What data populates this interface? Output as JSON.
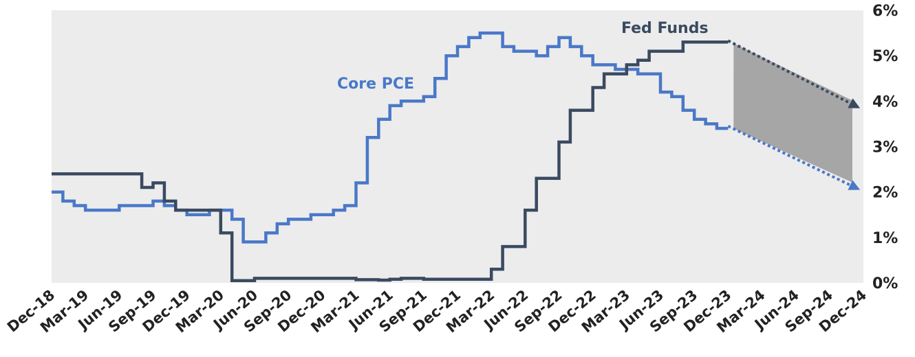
{
  "chart_data": {
    "type": "line",
    "title": "",
    "xlabel": "",
    "ylabel": "",
    "x_ticks": [
      "Dec-18",
      "Mar-19",
      "Jun-19",
      "Sep-19",
      "Dec-19",
      "Mar-20",
      "Jun-20",
      "Sep-20",
      "Dec-20",
      "Mar-21",
      "Jun-21",
      "Sep-21",
      "Dec-21",
      "Mar-22",
      "Jun-22",
      "Sep-22",
      "Dec-22",
      "Mar-23",
      "Jun-23",
      "Sep-23",
      "Dec-23",
      "Mar-24",
      "Jun-24",
      "Sep-24",
      "Dec-24"
    ],
    "y_ticks": [
      "0%",
      "1%",
      "2%",
      "3%",
      "4%",
      "5%",
      "6%"
    ],
    "ylim": [
      0,
      6
    ],
    "xlim": [
      "Dec-18",
      "Dec-24"
    ],
    "grid": false,
    "background": "#ececec",
    "series": [
      {
        "name": "Core PCE",
        "color": "#4a78c8",
        "dates": [
          "Dec-18",
          "Jan-19",
          "Feb-19",
          "Mar-19",
          "Apr-19",
          "May-19",
          "Jun-19",
          "Jul-19",
          "Aug-19",
          "Sep-19",
          "Oct-19",
          "Nov-19",
          "Dec-19",
          "Jan-20",
          "Feb-20",
          "Mar-20",
          "Apr-20",
          "May-20",
          "Jun-20",
          "Jul-20",
          "Aug-20",
          "Sep-20",
          "Oct-20",
          "Nov-20",
          "Dec-20",
          "Jan-21",
          "Feb-21",
          "Mar-21",
          "Apr-21",
          "May-21",
          "Jun-21",
          "Jul-21",
          "Aug-21",
          "Sep-21",
          "Oct-21",
          "Nov-21",
          "Dec-21",
          "Jan-22",
          "Feb-22",
          "Mar-22",
          "Apr-22",
          "May-22",
          "Jun-22",
          "Jul-22",
          "Aug-22",
          "Sep-22",
          "Oct-22",
          "Nov-22",
          "Dec-22",
          "Jan-23",
          "Feb-23",
          "Mar-23",
          "Apr-23",
          "May-23",
          "Jun-23",
          "Jul-23",
          "Aug-23",
          "Sep-23",
          "Oct-23",
          "Nov-23",
          "Dec-23"
        ],
        "values": [
          2.0,
          1.8,
          1.7,
          1.6,
          1.6,
          1.6,
          1.7,
          1.7,
          1.7,
          1.8,
          1.7,
          1.6,
          1.5,
          1.5,
          1.6,
          1.6,
          1.4,
          0.9,
          0.9,
          1.1,
          1.3,
          1.4,
          1.4,
          1.5,
          1.5,
          1.6,
          1.7,
          2.2,
          3.2,
          3.6,
          3.9,
          4.0,
          4.0,
          4.1,
          4.5,
          5.0,
          5.2,
          5.4,
          5.5,
          5.5,
          5.2,
          5.1,
          5.1,
          5.0,
          5.2,
          5.4,
          5.2,
          5.0,
          4.8,
          4.8,
          4.7,
          4.7,
          4.6,
          4.6,
          4.2,
          4.1,
          3.8,
          3.6,
          3.5,
          3.4,
          3.4
        ]
      },
      {
        "name": "Fed Funds",
        "color": "#3a4a60",
        "dates": [
          "Dec-18",
          "Jan-19",
          "Feb-19",
          "Mar-19",
          "Apr-19",
          "May-19",
          "Jun-19",
          "Jul-19",
          "Aug-19",
          "Sep-19",
          "Oct-19",
          "Nov-19",
          "Dec-19",
          "Jan-20",
          "Feb-20",
          "Mar-20",
          "Apr-20",
          "May-20",
          "Jun-20",
          "Jul-20",
          "Aug-20",
          "Sep-20",
          "Oct-20",
          "Nov-20",
          "Dec-20",
          "Jan-21",
          "Feb-21",
          "Mar-21",
          "Apr-21",
          "May-21",
          "Jun-21",
          "Jul-21",
          "Aug-21",
          "Sep-21",
          "Oct-21",
          "Nov-21",
          "Dec-21",
          "Jan-22",
          "Feb-22",
          "Mar-22",
          "Apr-22",
          "May-22",
          "Jun-22",
          "Jul-22",
          "Aug-22",
          "Sep-22",
          "Oct-22",
          "Nov-22",
          "Dec-22",
          "Jan-23",
          "Feb-23",
          "Mar-23",
          "Apr-23",
          "May-23",
          "Jun-23",
          "Jul-23",
          "Aug-23",
          "Sep-23",
          "Oct-23",
          "Nov-23",
          "Dec-23"
        ],
        "values": [
          2.4,
          2.4,
          2.4,
          2.4,
          2.4,
          2.4,
          2.4,
          2.4,
          2.1,
          2.2,
          1.8,
          1.6,
          1.6,
          1.6,
          1.6,
          1.1,
          0.05,
          0.05,
          0.1,
          0.1,
          0.1,
          0.1,
          0.1,
          0.1,
          0.1,
          0.1,
          0.1,
          0.07,
          0.07,
          0.06,
          0.08,
          0.1,
          0.1,
          0.08,
          0.08,
          0.08,
          0.08,
          0.08,
          0.08,
          0.3,
          0.8,
          0.8,
          1.6,
          2.3,
          2.3,
          3.1,
          3.8,
          3.8,
          4.3,
          4.6,
          4.6,
          4.8,
          4.9,
          5.1,
          5.1,
          5.1,
          5.3,
          5.3,
          5.3,
          5.3,
          5.3
        ]
      }
    ],
    "projections": {
      "fed_funds": {
        "from": [
          "Dec-23",
          5.33
        ],
        "to": [
          "Dec-24",
          3.9
        ]
      },
      "core_pce": {
        "from": [
          "Dec-23",
          3.45
        ],
        "to": [
          "Dec-24",
          2.1
        ]
      },
      "band_color": "#a6a6a6"
    }
  }
}
